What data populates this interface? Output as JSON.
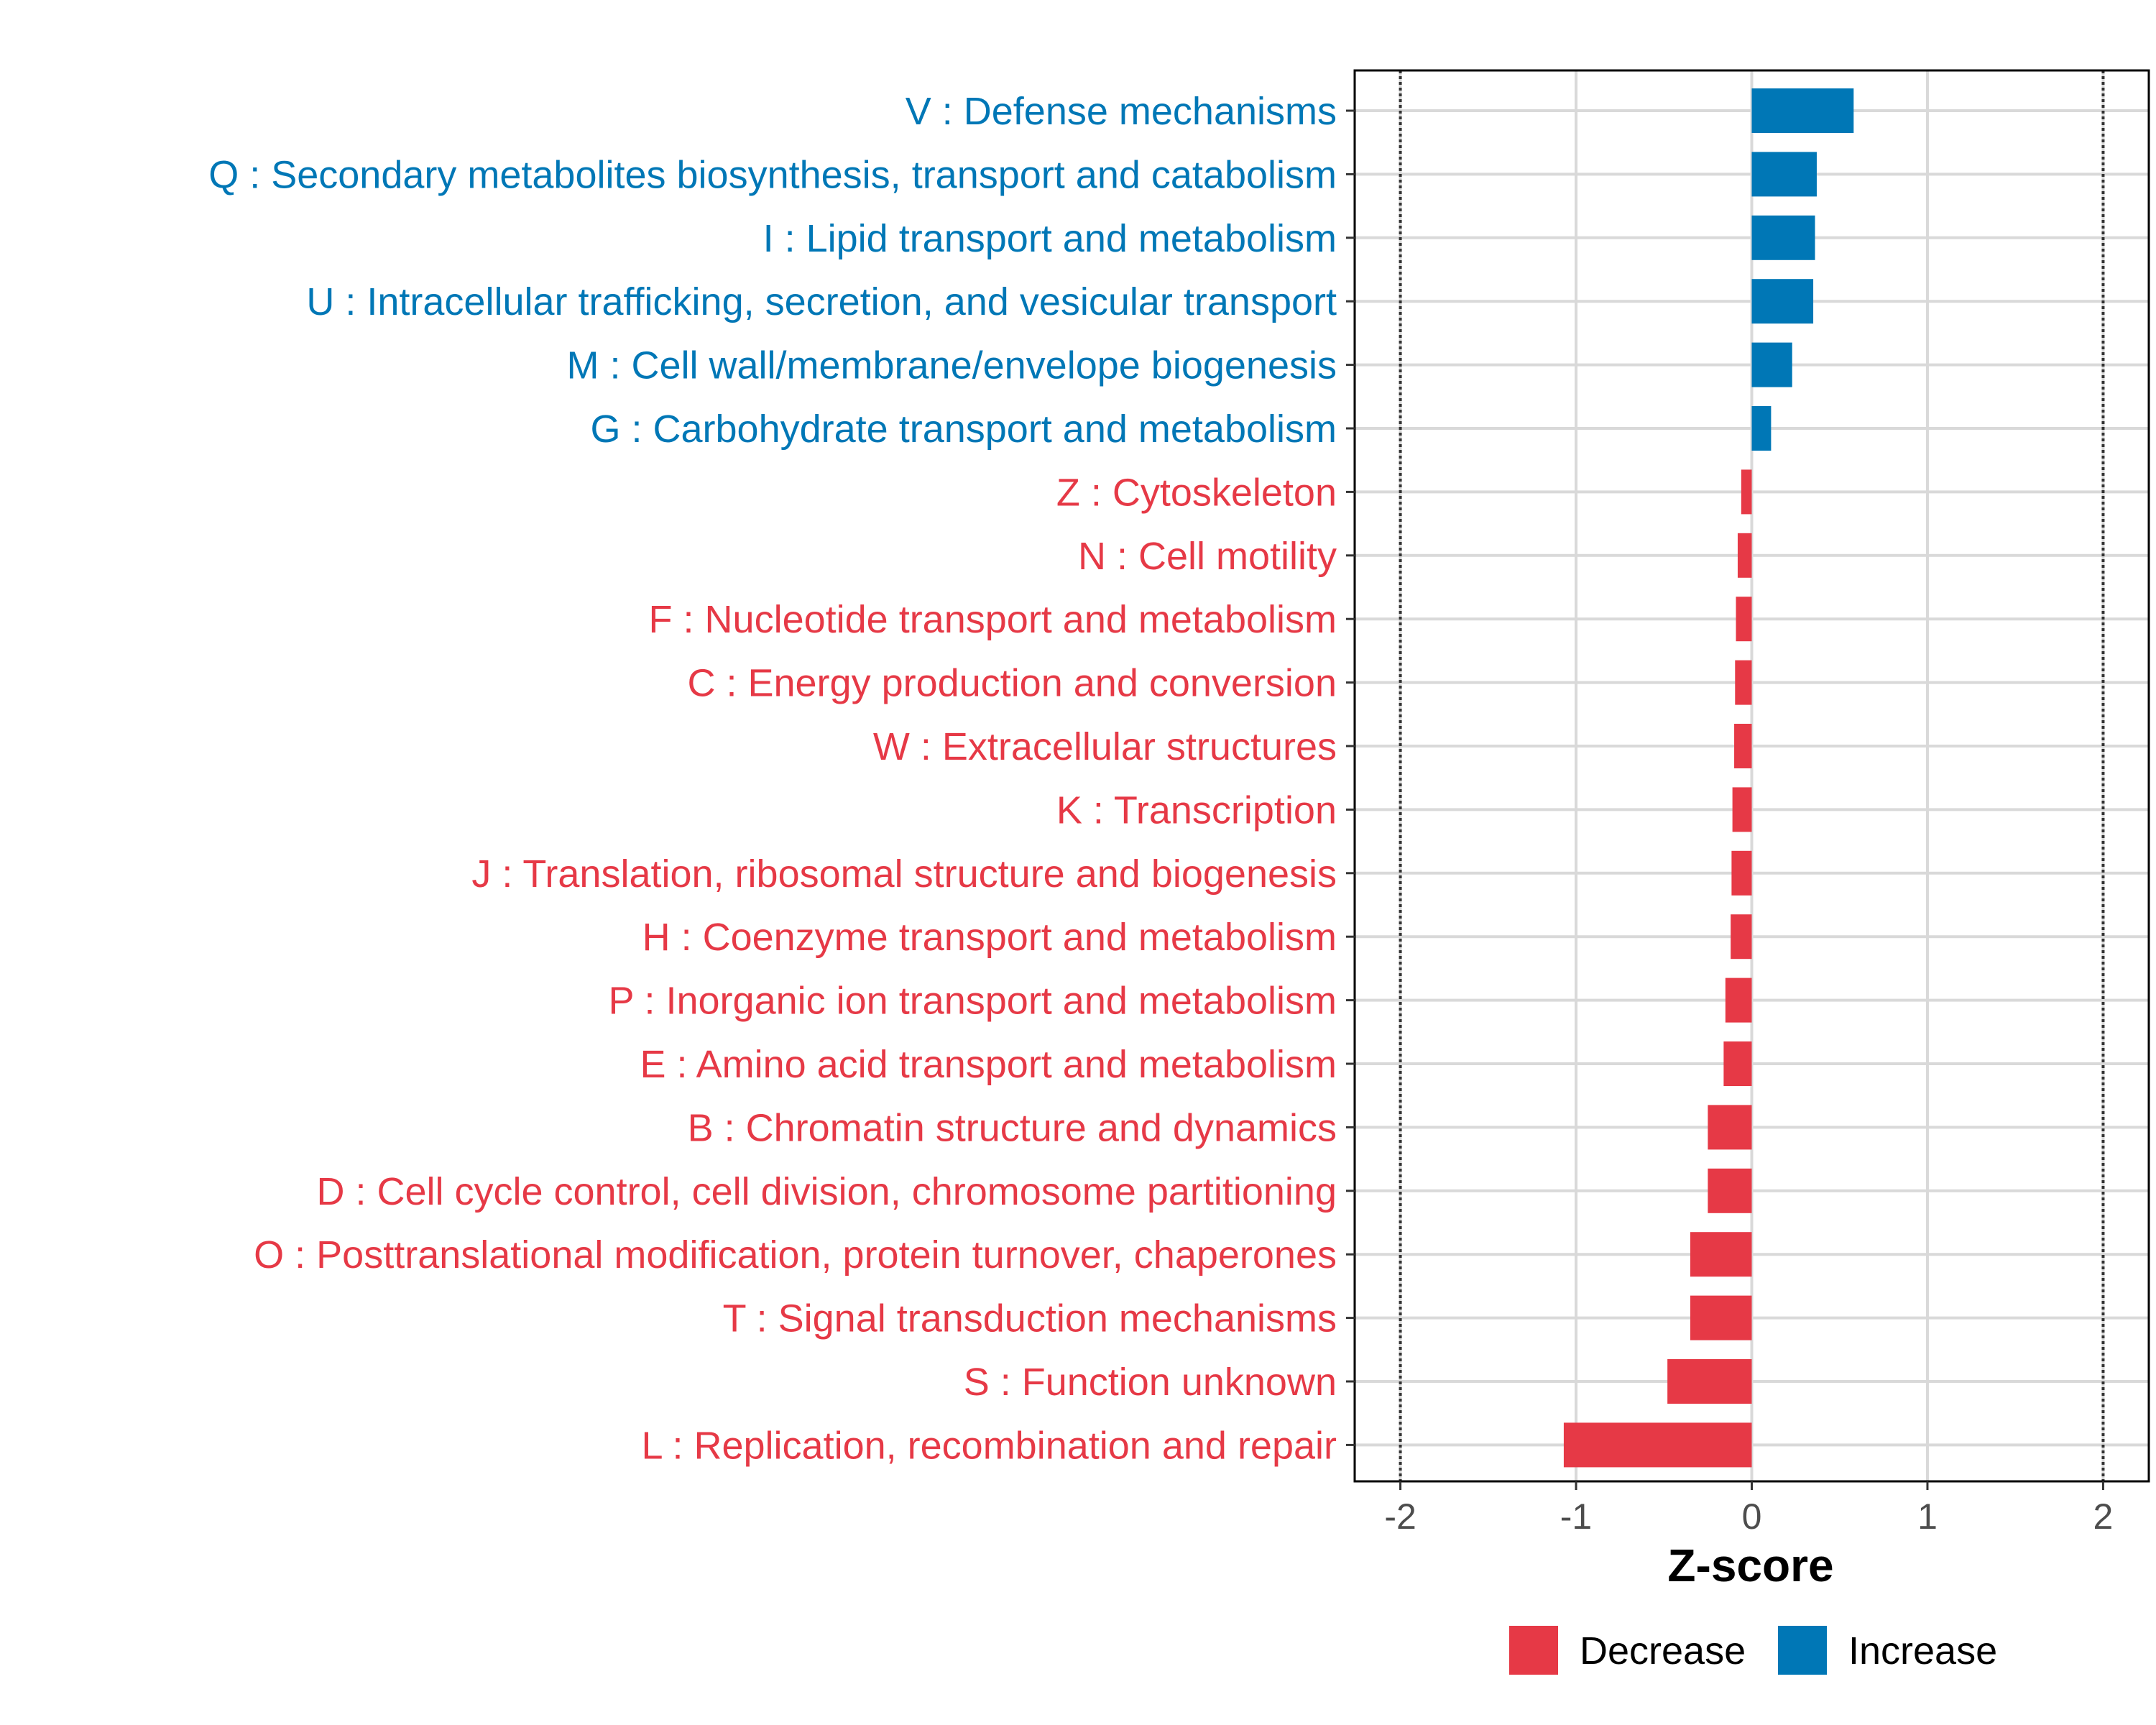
{
  "chart_data": {
    "type": "bar",
    "orientation": "horizontal",
    "xlabel": "Z-score",
    "xlim": [
      -2.26,
      2.26
    ],
    "xticks": [
      {
        "value": -2,
        "label": "-2"
      },
      {
        "value": -1,
        "label": "-1"
      },
      {
        "value": 0,
        "label": "0"
      },
      {
        "value": 1,
        "label": "1"
      },
      {
        "value": 2,
        "label": "2"
      }
    ],
    "reference_lines": [
      -2,
      2
    ],
    "colors": {
      "Decrease": "#e63946",
      "Increase": "#0077b6"
    },
    "legend": {
      "position": "bottom",
      "items": [
        {
          "label": "Decrease",
          "color": "#e63946"
        },
        {
          "label": "Increase",
          "color": "#0077b6"
        }
      ]
    },
    "categories": [
      {
        "label": "V : Defense mechanisms",
        "value": 0.58,
        "group": "Increase"
      },
      {
        "label": "Q : Secondary metabolites biosynthesis, transport and catabolism",
        "value": 0.37,
        "group": "Increase"
      },
      {
        "label": "I : Lipid transport and metabolism",
        "value": 0.36,
        "group": "Increase"
      },
      {
        "label": "U : Intracellular trafficking, secretion, and vesicular transport",
        "value": 0.35,
        "group": "Increase"
      },
      {
        "label": "M : Cell wall/membrane/envelope biogenesis",
        "value": 0.23,
        "group": "Increase"
      },
      {
        "label": "G : Carbohydrate transport and metabolism",
        "value": 0.11,
        "group": "Increase"
      },
      {
        "label": "Z : Cytoskeleton",
        "value": -0.06,
        "group": "Decrease"
      },
      {
        "label": "N : Cell motility",
        "value": -0.08,
        "group": "Decrease"
      },
      {
        "label": "F : Nucleotide transport and metabolism",
        "value": -0.09,
        "group": "Decrease"
      },
      {
        "label": "C : Energy production and conversion",
        "value": -0.095,
        "group": "Decrease"
      },
      {
        "label": "W : Extracellular structures",
        "value": -0.1,
        "group": "Decrease"
      },
      {
        "label": "K : Transcription",
        "value": -0.11,
        "group": "Decrease"
      },
      {
        "label": "J : Translation, ribosomal structure and biogenesis",
        "value": -0.115,
        "group": "Decrease"
      },
      {
        "label": "H : Coenzyme transport and metabolism",
        "value": -0.12,
        "group": "Decrease"
      },
      {
        "label": "P : Inorganic ion transport and metabolism",
        "value": -0.15,
        "group": "Decrease"
      },
      {
        "label": "E : Amino acid transport and metabolism",
        "value": -0.16,
        "group": "Decrease"
      },
      {
        "label": "B : Chromatin structure and dynamics",
        "value": -0.25,
        "group": "Decrease"
      },
      {
        "label": "D : Cell cycle control, cell division, chromosome partitioning",
        "value": -0.25,
        "group": "Decrease"
      },
      {
        "label": "O : Posttranslational modification, protein turnover, chaperones",
        "value": -0.35,
        "group": "Decrease"
      },
      {
        "label": "T : Signal transduction mechanisms",
        "value": -0.35,
        "group": "Decrease"
      },
      {
        "label": "S : Function unknown",
        "value": -0.48,
        "group": "Decrease"
      },
      {
        "label": "L : Replication, recombination and repair",
        "value": -1.07,
        "group": "Decrease"
      }
    ]
  }
}
